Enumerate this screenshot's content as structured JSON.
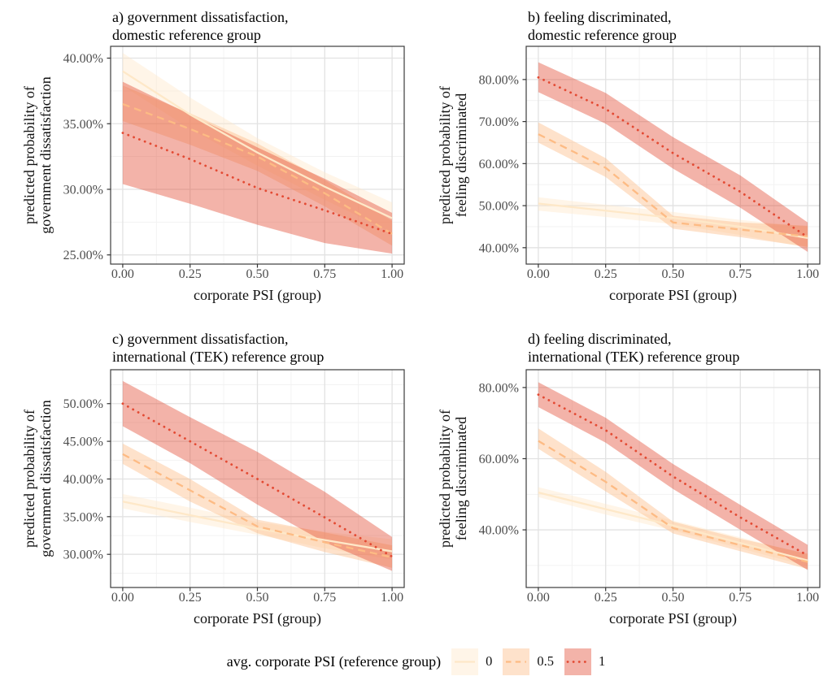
{
  "chart_data": {
    "type": "line",
    "description": "2x2 grid of predicted-probability line charts with confidence ribbons",
    "x_axis": {
      "label": "corporate PSI (group)",
      "tick_values": [
        0,
        0.25,
        0.5,
        0.75,
        1
      ],
      "tick_labels": [
        "0.00",
        "0.25",
        "0.50",
        "0.75",
        "1.00"
      ],
      "range": [
        -0.045,
        1.045
      ]
    },
    "legend": {
      "title": "avg. corporate PSI (reference group)",
      "position": "bottom",
      "items": [
        {
          "label": "0",
          "style": "solid",
          "color": "#fee8c8"
        },
        {
          "label": "0.5",
          "style": "dashed",
          "color": "#fdbb84"
        },
        {
          "label": "1",
          "style": "dotted",
          "color": "#e34a33"
        }
      ]
    },
    "panels": [
      {
        "id": "a",
        "title_lines": [
          "a) government dissatisfaction,",
          "domestic reference group"
        ],
        "ylabel_lines": [
          "predicted probability of",
          "government dissatisfaction"
        ],
        "xlabel": "corporate PSI (group)",
        "y_ticks": [
          25,
          30,
          35,
          40
        ],
        "y_tick_labels": [
          "25.00%",
          "30.00%",
          "35.00%",
          "40.00%"
        ],
        "ylim": [
          24.3,
          40.9
        ],
        "xlim": [
          -0.045,
          1.045
        ],
        "x": [
          0,
          0.25,
          0.5,
          0.75,
          1
        ],
        "series": [
          {
            "name": "0",
            "style": "solid",
            "color": "#fee8c8",
            "values": [
              39.0,
              35.7,
              32.8,
              30.2,
              27.8
            ],
            "ci_lower": [
              37.9,
              34.6,
              31.8,
              29.2,
              26.7
            ],
            "ci_upper": [
              40.4,
              37.0,
              33.9,
              31.3,
              29.0
            ]
          },
          {
            "name": "0.5",
            "style": "dashed",
            "color": "#fdbb84",
            "values": [
              36.5,
              34.6,
              32.5,
              29.7,
              26.6
            ],
            "ci_lower": [
              35.2,
              33.4,
              31.4,
              28.7,
              25.7
            ],
            "ci_upper": [
              37.9,
              35.8,
              33.5,
              30.7,
              27.6
            ]
          },
          {
            "name": "1",
            "style": "dotted",
            "color": "#e34a33",
            "values": [
              34.3,
              32.3,
              30.1,
              28.4,
              26.6
            ],
            "ci_lower": [
              30.4,
              28.9,
              27.3,
              25.9,
              25.1
            ],
            "ci_upper": [
              38.2,
              35.7,
              33.2,
              30.8,
              28.2
            ]
          }
        ]
      },
      {
        "id": "b",
        "title_lines": [
          "b) feeling discriminated,",
          "domestic reference group"
        ],
        "ylabel_lines": [
          "predicted probability of",
          "feeling discriminated"
        ],
        "xlabel": "corporate PSI (group)",
        "y_ticks": [
          40,
          50,
          60,
          70,
          80
        ],
        "y_tick_labels": [
          "40.00%",
          "50.00%",
          "60.00%",
          "70.00%",
          "80.00%"
        ],
        "ylim": [
          36.1,
          87.9
        ],
        "xlim": [
          -0.045,
          1.045
        ],
        "x": [
          0,
          0.25,
          0.5,
          0.75,
          1
        ],
        "series": [
          {
            "name": "0",
            "style": "solid",
            "color": "#fee8c8",
            "values": [
              50.5,
              48.8,
              47.1,
              45.0,
              42.3
            ],
            "ci_lower": [
              48.8,
              47.3,
              45.6,
              43.0,
              40.0
            ],
            "ci_upper": [
              52.0,
              50.2,
              48.5,
              46.6,
              45.0
            ]
          },
          {
            "name": "0.5",
            "style": "dashed",
            "color": "#fdbb84",
            "values": [
              67.0,
              59.0,
              46.0,
              44.3,
              42.7
            ],
            "ci_lower": [
              65.0,
              56.8,
              44.5,
              42.5,
              40.2
            ],
            "ci_upper": [
              69.8,
              61.3,
              47.6,
              46.0,
              45.2
            ]
          },
          {
            "name": "1",
            "style": "dotted",
            "color": "#e34a33",
            "values": [
              80.5,
              73.0,
              62.5,
              53.3,
              42.5
            ],
            "ci_lower": [
              77.0,
              69.5,
              58.8,
              49.5,
              39.0
            ],
            "ci_upper": [
              84.1,
              76.8,
              66.3,
              57.2,
              46.0
            ]
          }
        ]
      },
      {
        "id": "c",
        "title_lines": [
          "c) government dissatisfaction,",
          "international (TEK) reference group"
        ],
        "ylabel_lines": [
          "predicted probability of",
          "government dissatisfaction"
        ],
        "xlabel": "corporate PSI (group)",
        "y_ticks": [
          30,
          35,
          40,
          45,
          50
        ],
        "y_tick_labels": [
          "30.00%",
          "35.00%",
          "40.00%",
          "45.00%",
          "50.00%"
        ],
        "ylim": [
          25.6,
          54.5
        ],
        "xlim": [
          -0.045,
          1.045
        ],
        "x": [
          0,
          0.25,
          0.5,
          0.75,
          1
        ],
        "series": [
          {
            "name": "0",
            "style": "solid",
            "color": "#fee8c8",
            "values": [
              37.0,
              35.2,
              33.4,
              31.9,
              30.4
            ],
            "ci_lower": [
              36.1,
              34.3,
              32.6,
              30.8,
              29.3
            ],
            "ci_upper": [
              38.0,
              36.2,
              34.3,
              33.0,
              32.0
            ]
          },
          {
            "name": "0.5",
            "style": "dashed",
            "color": "#fdbb84",
            "values": [
              43.3,
              38.5,
              33.7,
              31.6,
              29.6
            ],
            "ci_lower": [
              42.0,
              37.0,
              32.8,
              30.3,
              28.2
            ],
            "ci_upper": [
              44.7,
              40.0,
              34.6,
              32.9,
              31.2
            ]
          },
          {
            "name": "1",
            "style": "dotted",
            "color": "#e34a33",
            "values": [
              50.0,
              45.0,
              40.0,
              34.9,
              29.7
            ],
            "ci_lower": [
              47.0,
              42.1,
              36.6,
              31.6,
              27.8
            ],
            "ci_upper": [
              53.0,
              48.2,
              43.6,
              38.3,
              32.3
            ]
          }
        ]
      },
      {
        "id": "d",
        "title_lines": [
          "d) feeling discriminated,",
          "international (TEK) reference group"
        ],
        "ylabel_lines": [
          "predicted probability of",
          "feeling discriminated"
        ],
        "xlabel": "corporate PSI (group)",
        "y_ticks": [
          40,
          60,
          80
        ],
        "y_tick_labels": [
          "40.00%",
          "60.00%",
          "80.00%"
        ],
        "ylim": [
          23.8,
          85.0
        ],
        "xlim": [
          -0.045,
          1.045
        ],
        "x": [
          0,
          0.25,
          0.5,
          0.75,
          1
        ],
        "series": [
          {
            "name": "0",
            "style": "solid",
            "color": "#fee8c8",
            "values": [
              50.5,
              45.8,
              41.2,
              36.3,
              31.4
            ],
            "ci_lower": [
              49.2,
              44.3,
              39.8,
              34.8,
              29.8
            ],
            "ci_upper": [
              52.0,
              47.3,
              42.6,
              37.9,
              33.0
            ]
          },
          {
            "name": "0.5",
            "style": "dashed",
            "color": "#fdbb84",
            "values": [
              65.0,
              53.5,
              40.5,
              35.7,
              31.0
            ],
            "ci_lower": [
              62.8,
              50.8,
              39.0,
              34.0,
              29.0
            ],
            "ci_upper": [
              68.5,
              56.3,
              42.3,
              37.5,
              33.3
            ]
          },
          {
            "name": "1",
            "style": "dotted",
            "color": "#e34a33",
            "values": [
              78.0,
              68.0,
              55.0,
              43.5,
              32.8
            ],
            "ci_lower": [
              74.5,
              64.5,
              51.5,
              40.0,
              28.7
            ],
            "ci_upper": [
              81.5,
              71.5,
              58.5,
              47.0,
              35.8
            ]
          }
        ]
      }
    ]
  }
}
